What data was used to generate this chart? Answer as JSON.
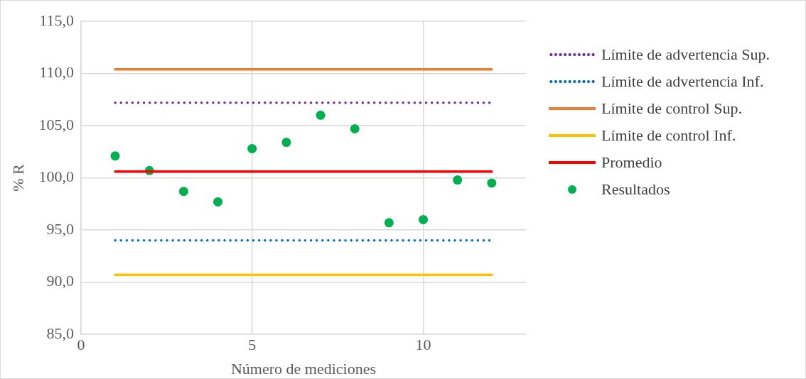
{
  "chart_data": {
    "type": "line",
    "xlabel": "Número de mediciones",
    "ylabel": "% R",
    "xlim": [
      0,
      13
    ],
    "xticks": [
      0,
      5,
      10
    ],
    "ylim": [
      85,
      115
    ],
    "yticks": [
      {
        "value": 85,
        "label": "85,0"
      },
      {
        "value": 90,
        "label": "90,0"
      },
      {
        "value": 95,
        "label": "95,0"
      },
      {
        "value": 100,
        "label": "100,0"
      },
      {
        "value": 105,
        "label": "105,0"
      },
      {
        "value": 110,
        "label": "110,0"
      },
      {
        "value": 115,
        "label": "115,0"
      }
    ],
    "grid": true,
    "legend": "right",
    "series": [
      {
        "name": "Límite de advertencia Sup.",
        "type": "line",
        "line_style": "dotted",
        "marker": "none",
        "color": "#7030a0",
        "x": [
          1,
          12
        ],
        "values": [
          107.2,
          107.2
        ]
      },
      {
        "name": "Límite de advertencia Inf.",
        "type": "line",
        "line_style": "dotted",
        "marker": "none",
        "color": "#0070c0",
        "x": [
          1,
          12
        ],
        "values": [
          94.0,
          94.0
        ]
      },
      {
        "name": "Límite de control Sup.",
        "type": "line",
        "line_style": "solid",
        "marker": "none",
        "color": "#ed7d31",
        "x": [
          1,
          12
        ],
        "values": [
          110.4,
          110.4
        ]
      },
      {
        "name": "Límite de control Inf.",
        "type": "line",
        "line_style": "solid",
        "marker": "none",
        "color": "#ffc000",
        "x": [
          1,
          12
        ],
        "values": [
          90.7,
          90.7
        ]
      },
      {
        "name": "Promedio",
        "type": "line",
        "line_style": "solid",
        "marker": "none",
        "color": "#ff0000",
        "x": [
          1,
          12
        ],
        "values": [
          100.6,
          100.6
        ]
      },
      {
        "name": "Resultados",
        "type": "scatter",
        "marker": "circle",
        "color": "#00b050",
        "x": [
          1,
          2,
          3,
          4,
          5,
          6,
          7,
          8,
          9,
          10,
          11,
          12
        ],
        "values": [
          102.1,
          100.7,
          98.7,
          97.7,
          102.8,
          103.4,
          106.0,
          104.7,
          95.7,
          96.0,
          99.8,
          99.5
        ]
      }
    ]
  }
}
